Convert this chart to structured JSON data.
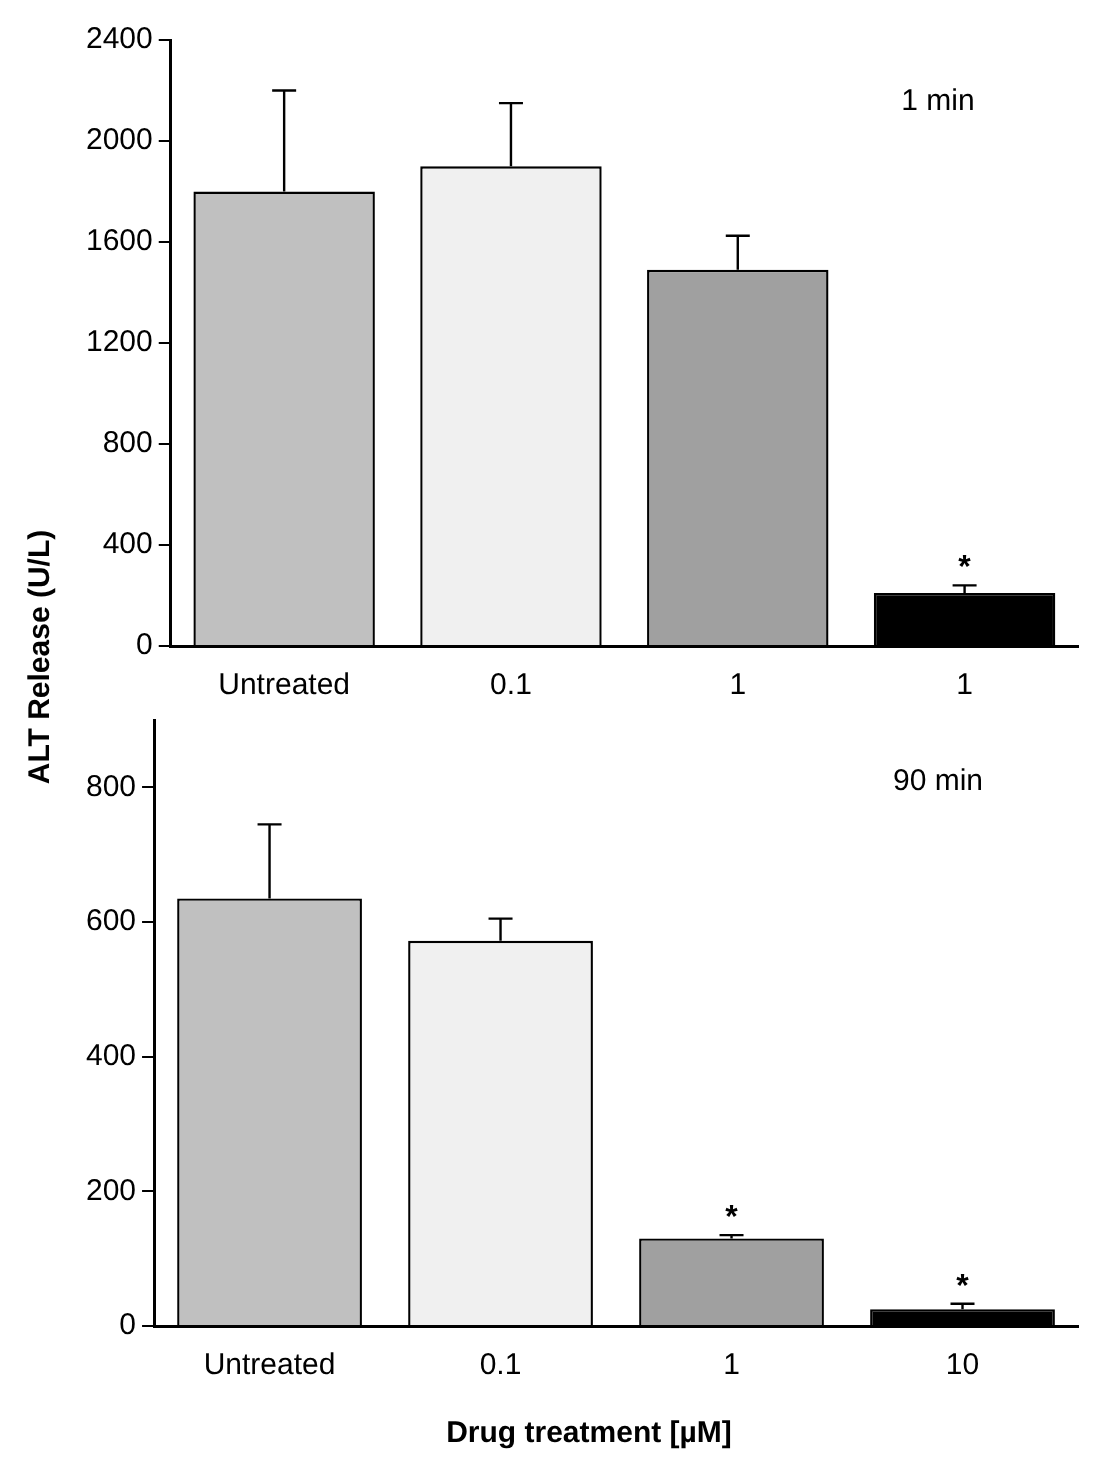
{
  "chart_data": [
    {
      "type": "bar",
      "ylabel": "ALT Release (U/L)",
      "categories": [
        "Untreated",
        "0.1",
        "1",
        "1"
      ],
      "values": [
        1800,
        1900,
        1490,
        210
      ],
      "colors": [
        "#c0c0c0",
        "#f0f0f0",
        "#a0a0a0",
        "#000000"
      ],
      "errors": [
        [
          1800,
          2200
        ],
        [
          1900,
          2150
        ],
        [
          1490,
          1625
        ],
        [
          210,
          240
        ]
      ],
      "value_labels": [
        null,
        null,
        null,
        "*"
      ],
      "ylim": [
        0,
        2400
      ],
      "yticks": [
        0,
        400,
        800,
        1200,
        1600,
        2000,
        2400
      ],
      "grid": false,
      "legend": false,
      "annotations": [
        "1 min"
      ]
    },
    {
      "type": "bar",
      "xlabel": "Drug treatment [µM]",
      "categories": [
        "Untreated",
        "0.1",
        "1",
        "10"
      ],
      "values": [
        635,
        572,
        130,
        25
      ],
      "colors": [
        "#c0c0c0",
        "#f0f0f0",
        "#a0a0a0",
        "#000000"
      ],
      "errors": [
        [
          635,
          745
        ],
        [
          572,
          605
        ],
        [
          130,
          135
        ],
        [
          25,
          33
        ]
      ],
      "value_labels": [
        null,
        null,
        "*",
        "*"
      ],
      "ylim": [
        0,
        900
      ],
      "yticks": [
        0,
        200,
        400,
        600,
        800
      ],
      "grid": false,
      "legend": false,
      "annotations": [
        "90 min"
      ]
    }
  ]
}
